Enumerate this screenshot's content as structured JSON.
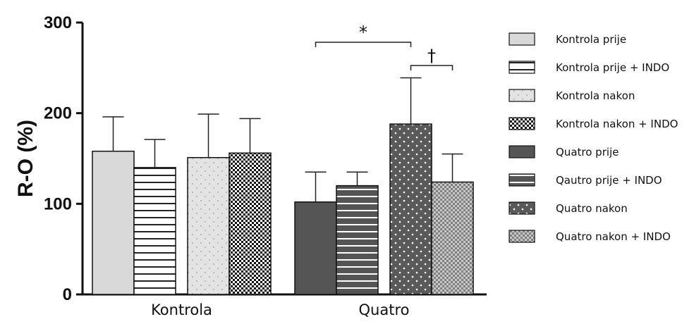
{
  "chart_data": {
    "type": "bar",
    "ylabel": "R-O (%)",
    "ylim": [
      0,
      300
    ],
    "yticks": [
      "0",
      "100",
      "200",
      "300"
    ],
    "groups": [
      "Kontrola",
      "Quatro"
    ],
    "series": [
      {
        "name": "Kontrola prije",
        "group": "Kontrola",
        "value": 158,
        "error": 38,
        "fill": "#d9d9d9",
        "pattern": "solid-light"
      },
      {
        "name": "Kontrola prije + INDO",
        "group": "Kontrola",
        "value": 140,
        "error": 31,
        "fill": "#ffffff",
        "pattern": "hlines-dark"
      },
      {
        "name": "Kontrola nakon",
        "group": "Kontrola",
        "value": 151,
        "error": 48,
        "fill": "#e3e3e3",
        "pattern": "dots-light"
      },
      {
        "name": "Kontrola nakon + INDO",
        "group": "Kontrola",
        "value": 156,
        "error": 38,
        "fill": "#ffffff",
        "pattern": "checker-dark"
      },
      {
        "name": "Quatro prije",
        "group": "Quatro",
        "value": 102,
        "error": 33,
        "fill": "#555555",
        "pattern": "solid-dark"
      },
      {
        "name": "Qautro prije + INDO",
        "group": "Quatro",
        "value": 120,
        "error": 15,
        "fill": "#555555",
        "pattern": "hlines-light"
      },
      {
        "name": "Quatro nakon",
        "group": "Quatro",
        "value": 188,
        "error": 51,
        "fill": "#5a5a5a",
        "pattern": "dots-dark"
      },
      {
        "name": "Quatro nakon + INDO",
        "group": "Quatro",
        "value": 124,
        "error": 31,
        "fill": "#c8c8c8",
        "pattern": "checker-light"
      }
    ],
    "annotations": [
      {
        "text": "*",
        "from": "Quatro prije",
        "to": "Quatro nakon"
      },
      {
        "text": "†",
        "from": "Quatro nakon",
        "to": "Quatro nakon + INDO"
      }
    ],
    "legend_position": "right",
    "grid": false
  }
}
